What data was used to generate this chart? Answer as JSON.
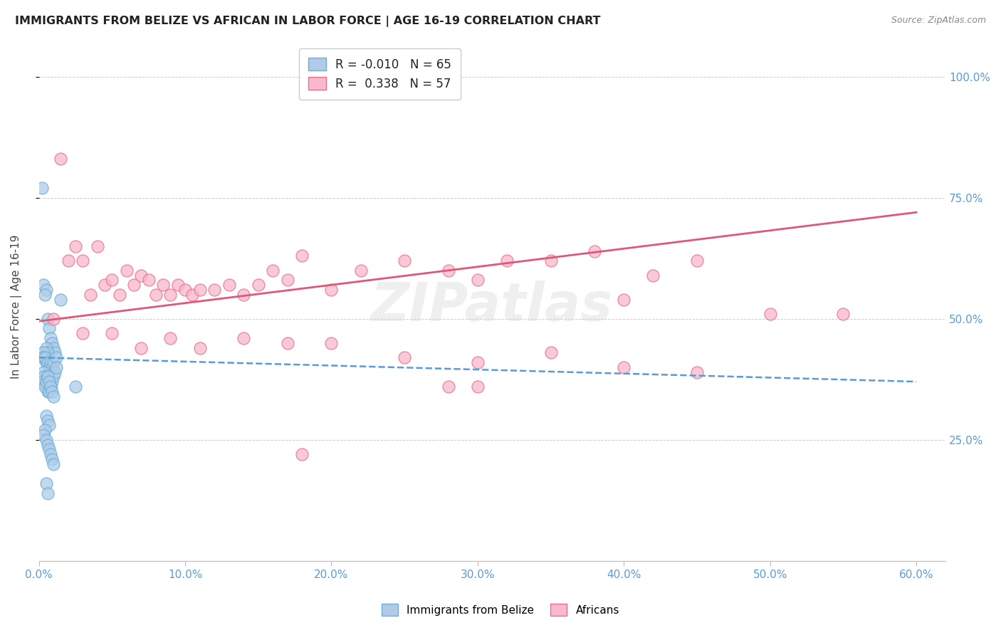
{
  "title": "IMMIGRANTS FROM BELIZE VS AFRICAN IN LABOR FORCE | AGE 16-19 CORRELATION CHART",
  "source": "Source: ZipAtlas.com",
  "ylabel": "In Labor Force | Age 16-19",
  "x_tick_labels": [
    "0.0%",
    "10.0%",
    "20.0%",
    "30.0%",
    "40.0%",
    "50.0%",
    "60.0%"
  ],
  "x_tick_values": [
    0.0,
    10.0,
    20.0,
    30.0,
    40.0,
    50.0,
    60.0
  ],
  "y_tick_labels_right": [
    "25.0%",
    "50.0%",
    "75.0%",
    "100.0%"
  ],
  "y_tick_values_right": [
    25.0,
    50.0,
    75.0,
    100.0
  ],
  "xlim": [
    0.0,
    62.0
  ],
  "ylim": [
    0.0,
    105.0
  ],
  "blue_color": "#aecce8",
  "blue_edge_color": "#6aaed6",
  "blue_line_color": "#5b9bd5",
  "pink_color": "#f9b8cb",
  "pink_edge_color": "#e8708a",
  "pink_line_color": "#e05878",
  "legend_r1": "R = -0.010",
  "legend_n1": "N = 65",
  "legend_r2": "R =  0.338",
  "legend_n2": "N = 57",
  "watermark": "ZIPatlas",
  "blue_scatter_x": [
    0.2,
    0.3,
    0.5,
    0.4,
    0.6,
    0.7,
    0.8,
    0.9,
    1.0,
    1.1,
    0.3,
    0.5,
    0.6,
    0.4,
    0.3,
    0.2,
    0.5,
    0.4,
    0.6,
    0.7,
    0.8,
    0.9,
    1.0,
    1.2,
    1.5,
    0.3,
    0.4,
    0.5,
    0.6,
    0.7,
    0.8,
    0.5,
    0.6,
    0.7,
    0.4,
    0.3,
    0.2,
    0.4,
    0.5,
    0.6,
    0.7,
    0.8,
    0.9,
    1.0,
    1.1,
    1.2,
    0.6,
    0.7,
    0.8,
    0.9,
    1.0,
    0.5,
    0.6,
    0.7,
    0.4,
    0.3,
    0.5,
    0.6,
    0.7,
    0.8,
    0.9,
    1.0,
    0.5,
    0.6,
    2.5
  ],
  "blue_scatter_y": [
    77.0,
    57.0,
    56.0,
    55.0,
    50.0,
    48.0,
    46.0,
    45.0,
    44.0,
    43.0,
    42.0,
    44.0,
    43.0,
    42.0,
    43.0,
    42.0,
    41.0,
    42.0,
    41.0,
    40.0,
    41.0,
    40.0,
    41.0,
    42.0,
    54.0,
    39.0,
    38.0,
    37.0,
    38.0,
    37.0,
    36.0,
    36.0,
    35.0,
    36.0,
    37.0,
    38.0,
    37.0,
    36.0,
    37.0,
    38.0,
    35.0,
    36.0,
    37.0,
    38.0,
    39.0,
    40.0,
    38.0,
    37.0,
    36.0,
    35.0,
    34.0,
    30.0,
    29.0,
    28.0,
    27.0,
    26.0,
    25.0,
    24.0,
    23.0,
    22.0,
    21.0,
    20.0,
    16.0,
    14.0,
    36.0
  ],
  "pink_scatter_x": [
    1.0,
    1.5,
    2.0,
    2.5,
    3.0,
    3.5,
    4.0,
    4.5,
    5.0,
    5.5,
    6.0,
    6.5,
    7.0,
    7.5,
    8.0,
    8.5,
    9.0,
    9.5,
    10.0,
    10.5,
    11.0,
    12.0,
    13.0,
    14.0,
    15.0,
    16.0,
    17.0,
    18.0,
    20.0,
    22.0,
    25.0,
    28.0,
    30.0,
    32.0,
    35.0,
    38.0,
    40.0,
    42.0,
    45.0,
    50.0,
    55.0,
    3.0,
    5.0,
    7.0,
    9.0,
    11.0,
    14.0,
    17.0,
    20.0,
    25.0,
    30.0,
    35.0,
    40.0,
    45.0,
    30.0,
    28.0,
    18.0
  ],
  "pink_scatter_y": [
    50.0,
    83.0,
    62.0,
    65.0,
    62.0,
    55.0,
    65.0,
    57.0,
    58.0,
    55.0,
    60.0,
    57.0,
    59.0,
    58.0,
    55.0,
    57.0,
    55.0,
    57.0,
    56.0,
    55.0,
    56.0,
    56.0,
    57.0,
    55.0,
    57.0,
    60.0,
    58.0,
    63.0,
    56.0,
    60.0,
    62.0,
    60.0,
    58.0,
    62.0,
    62.0,
    64.0,
    54.0,
    59.0,
    62.0,
    51.0,
    51.0,
    47.0,
    47.0,
    44.0,
    46.0,
    44.0,
    46.0,
    45.0,
    45.0,
    42.0,
    41.0,
    43.0,
    40.0,
    39.0,
    36.0,
    36.0,
    22.0
  ],
  "blue_trend_intercept": 42.0,
  "blue_trend_slope": -0.083,
  "pink_trend_intercept": 49.5,
  "pink_trend_slope": 0.375,
  "trend_x_min": 0.0,
  "trend_x_max": 60.0
}
